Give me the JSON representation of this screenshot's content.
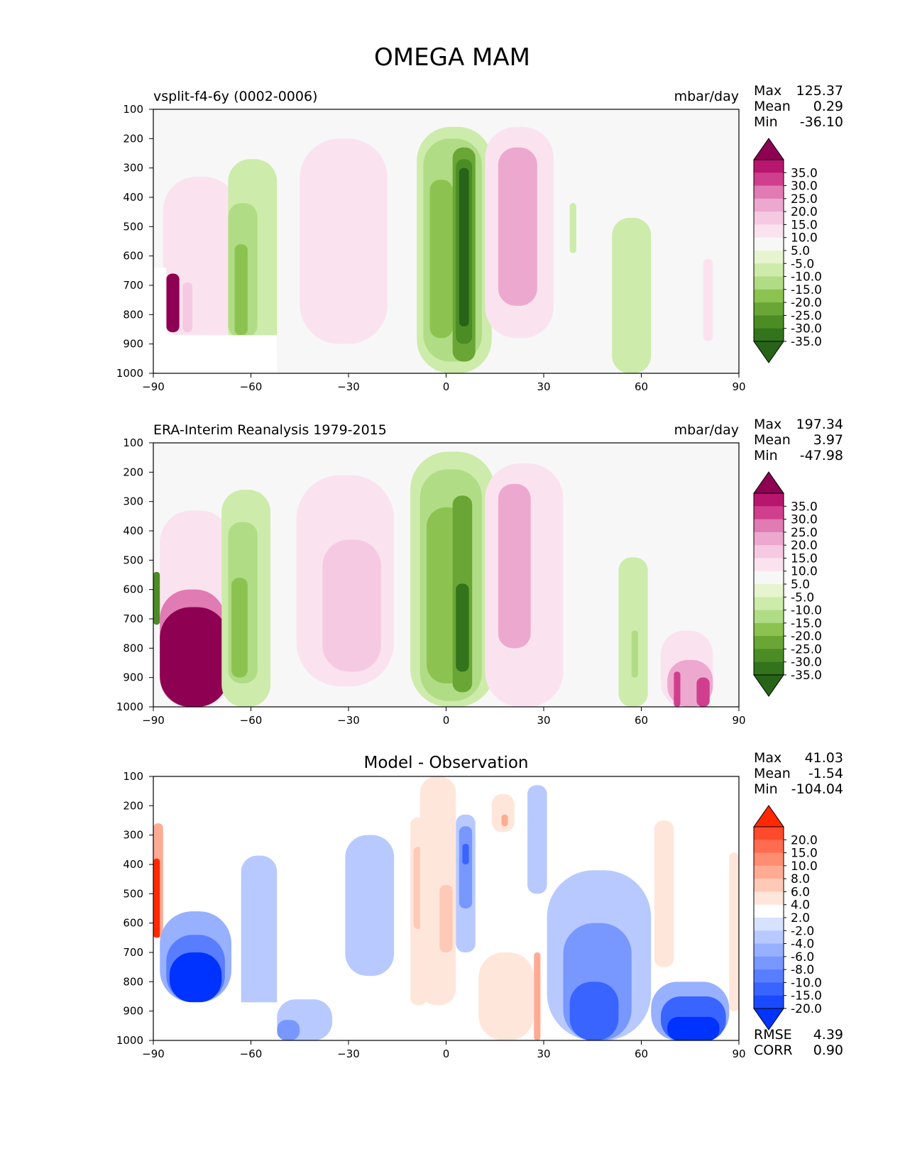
{
  "title": "OMEGA MAM",
  "chart_data": [
    {
      "type": "heatmap",
      "title": "vsplit-f4-6y (0002-0006)",
      "units": "mbar/day",
      "x_ticks": [
        -90,
        -60,
        -30,
        0,
        30,
        60,
        90
      ],
      "x_tick_labels": [
        "−90",
        "−60",
        "−30",
        "0",
        "30",
        "60",
        "90"
      ],
      "y_ticks": [
        100,
        200,
        300,
        400,
        500,
        600,
        700,
        800,
        900,
        1000
      ],
      "xlim": [
        -90,
        90
      ],
      "ylim": [
        1000,
        100
      ],
      "stats": [
        {
          "label": "Max",
          "value": "125.37"
        },
        {
          "label": "Mean",
          "value": "0.29"
        },
        {
          "label": "Min",
          "value": "-36.10"
        }
      ],
      "colorbar": {
        "labels": [
          "35.0",
          "30.0",
          "25.0",
          "20.0",
          "15.0",
          "10.0",
          "5.0",
          "-5.0",
          "-10.0",
          "-15.0",
          "-20.0",
          "-25.0",
          "-30.0",
          "-35.0"
        ],
        "colors": [
          "#8e0152",
          "#b7166e",
          "#d03f8d",
          "#e17bb3",
          "#eda8d0",
          "#f6c9e3",
          "#fae3ef",
          "#f7f7f7",
          "#e6f5d0",
          "#cdebaa",
          "#b0dc86",
          "#8cc350",
          "#6aa635",
          "#4c8c25",
          "#32731c",
          "#276419"
        ]
      },
      "regions": [
        {
          "x": [
            -87,
            -64
          ],
          "y": [
            330,
            900
          ],
          "v": 6
        },
        {
          "x": [
            -86,
            -82
          ],
          "y": [
            660,
            860
          ],
          "v": 40
        },
        {
          "x": [
            -81,
            -78
          ],
          "y": [
            690,
            860
          ],
          "v": 15
        },
        {
          "x": [
            -67,
            -52
          ],
          "y": [
            270,
            1000
          ],
          "v": -6
        },
        {
          "x": [
            -67,
            -58
          ],
          "y": [
            420,
            880
          ],
          "v": -12
        },
        {
          "x": [
            -65,
            -61
          ],
          "y": [
            560,
            870
          ],
          "v": -18
        },
        {
          "x": [
            -45,
            -18
          ],
          "y": [
            200,
            900
          ],
          "v": 6
        },
        {
          "x": [
            -38,
            -26
          ],
          "y": [
            440,
            850
          ],
          "v": 10
        },
        {
          "x": [
            -9,
            14
          ],
          "y": [
            160,
            1000
          ],
          "v": -6
        },
        {
          "x": [
            -7,
            11
          ],
          "y": [
            200,
            960
          ],
          "v": -12
        },
        {
          "x": [
            -5,
            2
          ],
          "y": [
            340,
            880
          ],
          "v": -18
        },
        {
          "x": [
            2,
            9
          ],
          "y": [
            230,
            960
          ],
          "v": -22
        },
        {
          "x": [
            3,
            8
          ],
          "y": [
            270,
            900
          ],
          "v": -28
        },
        {
          "x": [
            4,
            7
          ],
          "y": [
            300,
            840
          ],
          "v": -36
        },
        {
          "x": [
            12,
            33
          ],
          "y": [
            160,
            880
          ],
          "v": 6
        },
        {
          "x": [
            16,
            28
          ],
          "y": [
            230,
            770
          ],
          "v": 16
        },
        {
          "x": [
            38,
            40
          ],
          "y": [
            420,
            590
          ],
          "v": -6
        },
        {
          "x": [
            51,
            63
          ],
          "y": [
            470,
            1000
          ],
          "v": -6
        },
        {
          "x": [
            79,
            82
          ],
          "y": [
            610,
            890
          ],
          "v": 6
        }
      ],
      "masks": [
        {
          "x": [
            -90,
            -52
          ],
          "y": [
            870,
            1000
          ]
        },
        {
          "x": [
            -90,
            -86
          ],
          "y": [
            640,
            1000
          ]
        }
      ]
    },
    {
      "type": "heatmap",
      "title": "ERA-Interim Reanalysis 1979-2015",
      "units": "mbar/day",
      "x_ticks": [
        -90,
        -60,
        -30,
        0,
        30,
        60,
        90
      ],
      "x_tick_labels": [
        "−90",
        "−60",
        "−30",
        "0",
        "30",
        "60",
        "90"
      ],
      "y_ticks": [
        100,
        200,
        300,
        400,
        500,
        600,
        700,
        800,
        900,
        1000
      ],
      "xlim": [
        -90,
        90
      ],
      "ylim": [
        1000,
        100
      ],
      "stats": [
        {
          "label": "Max",
          "value": "197.34"
        },
        {
          "label": "Mean",
          "value": "3.97"
        },
        {
          "label": "Min",
          "value": "-47.98"
        }
      ],
      "colorbar": {
        "labels": [
          "35.0",
          "30.0",
          "25.0",
          "20.0",
          "15.0",
          "10.0",
          "5.0",
          "-5.0",
          "-10.0",
          "-15.0",
          "-20.0",
          "-25.0",
          "-30.0",
          "-35.0"
        ],
        "colors": [
          "#8e0152",
          "#b7166e",
          "#d03f8d",
          "#e17bb3",
          "#eda8d0",
          "#f6c9e3",
          "#fae3ef",
          "#f7f7f7",
          "#e6f5d0",
          "#cdebaa",
          "#b0dc86",
          "#8cc350",
          "#6aa635",
          "#4c8c25",
          "#32731c",
          "#276419"
        ]
      },
      "regions": [
        {
          "x": [
            -88,
            -66
          ],
          "y": [
            330,
            1000
          ],
          "v": 6
        },
        {
          "x": [
            -88,
            -68
          ],
          "y": [
            600,
            1000
          ],
          "v": 25
        },
        {
          "x": [
            -88,
            -67
          ],
          "y": [
            660,
            1000
          ],
          "v": 40
        },
        {
          "x": [
            -90,
            -88
          ],
          "y": [
            540,
            720
          ],
          "v": -30
        },
        {
          "x": [
            -69,
            -54
          ],
          "y": [
            260,
            1000
          ],
          "v": -6
        },
        {
          "x": [
            -67,
            -58
          ],
          "y": [
            370,
            920
          ],
          "v": -12
        },
        {
          "x": [
            -66,
            -61
          ],
          "y": [
            560,
            900
          ],
          "v": -18
        },
        {
          "x": [
            -46,
            -16
          ],
          "y": [
            210,
            930
          ],
          "v": 6
        },
        {
          "x": [
            -38,
            -20
          ],
          "y": [
            430,
            880
          ],
          "v": 12
        },
        {
          "x": [
            -11,
            15
          ],
          "y": [
            130,
            1000
          ],
          "v": -6
        },
        {
          "x": [
            -8,
            11
          ],
          "y": [
            190,
            980
          ],
          "v": -12
        },
        {
          "x": [
            -6,
            7
          ],
          "y": [
            320,
            920
          ],
          "v": -18
        },
        {
          "x": [
            2,
            8
          ],
          "y": [
            280,
            950
          ],
          "v": -25
        },
        {
          "x": [
            3,
            7
          ],
          "y": [
            580,
            880
          ],
          "v": -32
        },
        {
          "x": [
            12,
            36
          ],
          "y": [
            170,
            1000
          ],
          "v": 6
        },
        {
          "x": [
            16,
            26
          ],
          "y": [
            240,
            800
          ],
          "v": 16
        },
        {
          "x": [
            53,
            62
          ],
          "y": [
            490,
            1000
          ],
          "v": -6
        },
        {
          "x": [
            57,
            59
          ],
          "y": [
            740,
            900
          ],
          "v": -15
        },
        {
          "x": [
            66,
            82
          ],
          "y": [
            740,
            1000
          ],
          "v": 6
        },
        {
          "x": [
            68,
            82
          ],
          "y": [
            840,
            1000
          ],
          "v": 16
        },
        {
          "x": [
            70,
            72
          ],
          "y": [
            880,
            1000
          ],
          "v": 30
        },
        {
          "x": [
            77,
            81
          ],
          "y": [
            900,
            1000
          ],
          "v": 30
        }
      ],
      "masks": []
    },
    {
      "type": "heatmap",
      "title": "Model - Observation",
      "units": "",
      "x_ticks": [
        -90,
        -60,
        -30,
        0,
        30,
        60,
        90
      ],
      "x_tick_labels": [
        "−90",
        "−60",
        "−30",
        "0",
        "30",
        "60",
        "90"
      ],
      "y_ticks": [
        100,
        200,
        300,
        400,
        500,
        600,
        700,
        800,
        900,
        1000
      ],
      "xlim": [
        -90,
        90
      ],
      "ylim": [
        1000,
        100
      ],
      "stats": [
        {
          "label": "Max",
          "value": "41.03"
        },
        {
          "label": "Mean",
          "value": "-1.54"
        },
        {
          "label": "Min",
          "value": "-104.04"
        }
      ],
      "metrics": [
        {
          "label": "RMSE",
          "value": "4.39"
        },
        {
          "label": "CORR",
          "value": "0.90"
        }
      ],
      "colorbar": {
        "labels": [
          "20.0",
          "15.0",
          "10.0",
          "8.0",
          "6.0",
          "4.0",
          "2.0",
          "-2.0",
          "-4.0",
          "-6.0",
          "-8.0",
          "-10.0",
          "-15.0",
          "-20.0"
        ],
        "colors": [
          "#ff2800",
          "#ff4a2c",
          "#ff6c4f",
          "#ff8d71",
          "#ffab94",
          "#ffc9b7",
          "#ffe6db",
          "#ffffff",
          "#d6e2ff",
          "#b7c9ff",
          "#97b0ff",
          "#7897ff",
          "#587dff",
          "#3964ff",
          "#1a4aff",
          "#0033ff"
        ]
      },
      "regions": [
        {
          "x": [
            -90,
            -87
          ],
          "y": [
            260,
            650
          ],
          "v": 8
        },
        {
          "x": [
            -90,
            -88
          ],
          "y": [
            380,
            650
          ],
          "v": 25
        },
        {
          "x": [
            -88,
            -66
          ],
          "y": [
            560,
            870
          ],
          "v": -5
        },
        {
          "x": [
            -86,
            -68
          ],
          "y": [
            640,
            870
          ],
          "v": -10
        },
        {
          "x": [
            -85,
            -69
          ],
          "y": [
            700,
            870
          ],
          "v": -25
        },
        {
          "x": [
            -63,
            -52
          ],
          "y": [
            370,
            1000
          ],
          "v": -3
        },
        {
          "x": [
            -52,
            -35
          ],
          "y": [
            860,
            1000
          ],
          "v": -3
        },
        {
          "x": [
            -52,
            -45
          ],
          "y": [
            930,
            1000
          ],
          "v": -7
        },
        {
          "x": [
            -31,
            -16
          ],
          "y": [
            300,
            780
          ],
          "v": -3
        },
        {
          "x": [
            -11,
            -6
          ],
          "y": [
            240,
            880
          ],
          "v": 3
        },
        {
          "x": [
            -10,
            -7
          ],
          "y": [
            340,
            620
          ],
          "v": 5
        },
        {
          "x": [
            -8,
            3
          ],
          "y": [
            100,
            880
          ],
          "v": 3
        },
        {
          "x": [
            -2,
            2
          ],
          "y": [
            470,
            700
          ],
          "v": 6
        },
        {
          "x": [
            3,
            9
          ],
          "y": [
            230,
            700
          ],
          "v": -3
        },
        {
          "x": [
            4,
            8
          ],
          "y": [
            270,
            550
          ],
          "v": -7
        },
        {
          "x": [
            5,
            7
          ],
          "y": [
            330,
            400
          ],
          "v": -12
        },
        {
          "x": [
            14,
            21
          ],
          "y": [
            160,
            290
          ],
          "v": 3
        },
        {
          "x": [
            17,
            19
          ],
          "y": [
            230,
            270
          ],
          "v": 7
        },
        {
          "x": [
            10,
            27
          ],
          "y": [
            700,
            1000
          ],
          "v": 3
        },
        {
          "x": [
            27,
            29
          ],
          "y": [
            700,
            1000
          ],
          "v": 8
        },
        {
          "x": [
            25,
            31
          ],
          "y": [
            130,
            500
          ],
          "v": -3
        },
        {
          "x": [
            31,
            63
          ],
          "y": [
            420,
            1000
          ],
          "v": -3
        },
        {
          "x": [
            36,
            57
          ],
          "y": [
            600,
            1000
          ],
          "v": -7
        },
        {
          "x": [
            38,
            53
          ],
          "y": [
            800,
            1000
          ],
          "v": -12
        },
        {
          "x": [
            63,
            87
          ],
          "y": [
            800,
            1000
          ],
          "v": -5
        },
        {
          "x": [
            66,
            86
          ],
          "y": [
            850,
            1000
          ],
          "v": -12
        },
        {
          "x": [
            68,
            84
          ],
          "y": [
            920,
            1000
          ],
          "v": -25
        },
        {
          "x": [
            64,
            70
          ],
          "y": [
            250,
            750
          ],
          "v": 3
        },
        {
          "x": [
            87,
            90
          ],
          "y": [
            360,
            900
          ],
          "v": 3
        }
      ],
      "masks": [
        {
          "x": [
            -90,
            -52
          ],
          "y": [
            870,
            1000
          ]
        },
        {
          "x": [
            -90,
            -88
          ],
          "y": [
            650,
            870
          ]
        }
      ]
    }
  ]
}
